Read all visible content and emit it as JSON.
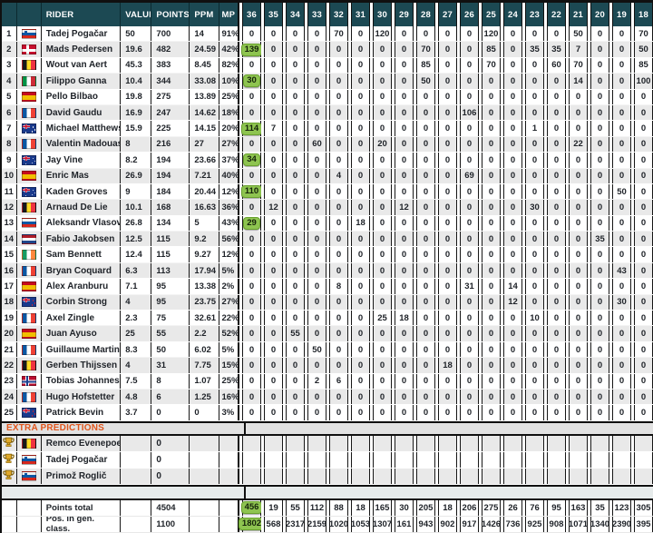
{
  "colors": {
    "header_bg": "#1c4953",
    "row_alt": "#e9e9e9",
    "badge_green": "#8ec450",
    "badge_border": "#69a12e",
    "accent_orange": "#e0551c",
    "extra_band_bg": "#e2e2e2",
    "gap_band_bg": "#e6ebeb"
  },
  "header": {
    "rider": "RIDER",
    "value": "VALUE",
    "points": "POINTS",
    "ppm": "PPM",
    "mp": "MP",
    "stages": [
      "36",
      "35",
      "34",
      "33",
      "32",
      "31",
      "30",
      "29",
      "28",
      "27",
      "26",
      "25",
      "24",
      "23",
      "22",
      "21",
      "20",
      "19",
      "18"
    ]
  },
  "riders": [
    {
      "rank": "1",
      "country": "si",
      "name": "Tadej Pogačar",
      "value": "50",
      "points": "700",
      "ppm": "14",
      "mp": "91%",
      "stages": [
        "0",
        "0",
        "0",
        "0",
        "70",
        "0",
        "120",
        "0",
        "0",
        "0",
        "0",
        "120",
        "0",
        "0",
        "0",
        "50",
        "0",
        "0",
        "70"
      ]
    },
    {
      "rank": "2",
      "country": "dk",
      "name": "Mads Pedersen",
      "value": "19.6",
      "points": "482",
      "ppm": "24.59",
      "mp": "42%",
      "stages": [
        "139",
        "0",
        "0",
        "0",
        "0",
        "0",
        "0",
        "0",
        "70",
        "0",
        "0",
        "85",
        "0",
        "35",
        "35",
        "7",
        "0",
        "0",
        "50"
      ]
    },
    {
      "rank": "3",
      "country": "be",
      "name": "Wout van Aert",
      "value": "45.3",
      "points": "383",
      "ppm": "8.45",
      "mp": "82%",
      "stages": [
        "0",
        "0",
        "0",
        "0",
        "0",
        "0",
        "0",
        "0",
        "85",
        "0",
        "0",
        "70",
        "0",
        "0",
        "60",
        "70",
        "0",
        "0",
        "85"
      ]
    },
    {
      "rank": "4",
      "country": "it",
      "name": "Filippo Ganna",
      "value": "10.4",
      "points": "344",
      "ppm": "33.08",
      "mp": "10%",
      "stages": [
        "30",
        "0",
        "0",
        "0",
        "0",
        "0",
        "0",
        "0",
        "50",
        "0",
        "0",
        "0",
        "0",
        "0",
        "0",
        "14",
        "0",
        "0",
        "100"
      ]
    },
    {
      "rank": "5",
      "country": "es",
      "name": "Pello Bilbao",
      "value": "19.8",
      "points": "275",
      "ppm": "13.89",
      "mp": "25%",
      "stages": [
        "0",
        "0",
        "0",
        "0",
        "0",
        "0",
        "0",
        "0",
        "0",
        "0",
        "0",
        "0",
        "0",
        "0",
        "0",
        "0",
        "0",
        "0",
        "0"
      ]
    },
    {
      "rank": "6",
      "country": "fr",
      "name": "David Gaudu",
      "value": "16.9",
      "points": "247",
      "ppm": "14.62",
      "mp": "18%",
      "stages": [
        "0",
        "0",
        "0",
        "0",
        "0",
        "0",
        "0",
        "0",
        "0",
        "0",
        "106",
        "0",
        "0",
        "0",
        "0",
        "0",
        "0",
        "0",
        "0"
      ]
    },
    {
      "rank": "7",
      "country": "au",
      "name": "Michael Matthews",
      "value": "15.9",
      "points": "225",
      "ppm": "14.15",
      "mp": "20%",
      "stages": [
        "114",
        "7",
        "0",
        "0",
        "0",
        "0",
        "0",
        "0",
        "0",
        "0",
        "0",
        "0",
        "0",
        "1",
        "0",
        "0",
        "0",
        "0",
        "0"
      ]
    },
    {
      "rank": "8",
      "country": "fr",
      "name": "Valentin Madouas",
      "value": "8",
      "points": "216",
      "ppm": "27",
      "mp": "27%",
      "stages": [
        "0",
        "0",
        "0",
        "60",
        "0",
        "0",
        "20",
        "0",
        "0",
        "0",
        "0",
        "0",
        "0",
        "0",
        "0",
        "22",
        "0",
        "0",
        "0"
      ]
    },
    {
      "rank": "9",
      "country": "au",
      "name": "Jay Vine",
      "value": "8.2",
      "points": "194",
      "ppm": "23.66",
      "mp": "37%",
      "stages": [
        "34",
        "0",
        "0",
        "0",
        "0",
        "0",
        "0",
        "0",
        "0",
        "0",
        "0",
        "0",
        "0",
        "0",
        "0",
        "0",
        "0",
        "0",
        "0"
      ]
    },
    {
      "rank": "10",
      "country": "es",
      "name": "Enric Mas",
      "value": "26.9",
      "points": "194",
      "ppm": "7.21",
      "mp": "40%",
      "stages": [
        "0",
        "0",
        "0",
        "0",
        "4",
        "0",
        "0",
        "0",
        "0",
        "0",
        "69",
        "0",
        "0",
        "0",
        "0",
        "0",
        "0",
        "0",
        "0"
      ]
    },
    {
      "rank": "11",
      "country": "au",
      "name": "Kaden Groves",
      "value": "9",
      "points": "184",
      "ppm": "20.44",
      "mp": "12%",
      "stages": [
        "110",
        "0",
        "0",
        "0",
        "0",
        "0",
        "0",
        "0",
        "0",
        "0",
        "0",
        "0",
        "0",
        "0",
        "0",
        "0",
        "0",
        "50",
        "0"
      ]
    },
    {
      "rank": "12",
      "country": "be",
      "name": "Arnaud De Lie",
      "value": "10.1",
      "points": "168",
      "ppm": "16.63",
      "mp": "36%",
      "stages": [
        "0",
        "12",
        "0",
        "0",
        "0",
        "0",
        "0",
        "12",
        "0",
        "0",
        "0",
        "0",
        "0",
        "30",
        "0",
        "0",
        "0",
        "0",
        "0"
      ]
    },
    {
      "rank": "13",
      "country": "ru",
      "name": "Aleksandr Vlasov",
      "value": "26.8",
      "points": "134",
      "ppm": "5",
      "mp": "43%",
      "stages": [
        "29",
        "0",
        "0",
        "0",
        "0",
        "18",
        "0",
        "0",
        "0",
        "0",
        "0",
        "0",
        "0",
        "0",
        "0",
        "0",
        "0",
        "0",
        "0"
      ]
    },
    {
      "rank": "14",
      "country": "nl",
      "name": "Fabio Jakobsen",
      "value": "12.5",
      "points": "115",
      "ppm": "9.2",
      "mp": "56%",
      "stages": [
        "0",
        "0",
        "0",
        "0",
        "0",
        "0",
        "0",
        "0",
        "0",
        "0",
        "0",
        "0",
        "0",
        "0",
        "0",
        "0",
        "35",
        "0",
        "0"
      ]
    },
    {
      "rank": "15",
      "country": "ie",
      "name": "Sam Bennett",
      "value": "12.4",
      "points": "115",
      "ppm": "9.27",
      "mp": "12%",
      "stages": [
        "0",
        "0",
        "0",
        "0",
        "0",
        "0",
        "0",
        "0",
        "0",
        "0",
        "0",
        "0",
        "0",
        "0",
        "0",
        "0",
        "0",
        "0",
        "0"
      ]
    },
    {
      "rank": "16",
      "country": "fr",
      "name": "Bryan Coquard",
      "value": "6.3",
      "points": "113",
      "ppm": "17.94",
      "mp": "5%",
      "stages": [
        "0",
        "0",
        "0",
        "0",
        "0",
        "0",
        "0",
        "0",
        "0",
        "0",
        "0",
        "0",
        "0",
        "0",
        "0",
        "0",
        "0",
        "43",
        "0"
      ]
    },
    {
      "rank": "17",
      "country": "es",
      "name": "Alex Aranburu",
      "value": "7.1",
      "points": "95",
      "ppm": "13.38",
      "mp": "2%",
      "stages": [
        "0",
        "0",
        "0",
        "0",
        "8",
        "0",
        "0",
        "0",
        "0",
        "0",
        "31",
        "0",
        "14",
        "0",
        "0",
        "0",
        "0",
        "0",
        "0"
      ]
    },
    {
      "rank": "18",
      "country": "nz",
      "name": "Corbin Strong",
      "value": "4",
      "points": "95",
      "ppm": "23.75",
      "mp": "27%",
      "stages": [
        "0",
        "0",
        "0",
        "0",
        "0",
        "0",
        "0",
        "0",
        "0",
        "0",
        "0",
        "0",
        "12",
        "0",
        "0",
        "0",
        "0",
        "30",
        "0"
      ]
    },
    {
      "rank": "19",
      "country": "fr",
      "name": "Axel Zingle",
      "value": "2.3",
      "points": "75",
      "ppm": "32.61",
      "mp": "22%",
      "stages": [
        "0",
        "0",
        "0",
        "0",
        "0",
        "0",
        "25",
        "18",
        "0",
        "0",
        "0",
        "0",
        "0",
        "10",
        "0",
        "0",
        "0",
        "0",
        "0"
      ]
    },
    {
      "rank": "20",
      "country": "es",
      "name": "Juan Ayuso",
      "value": "25",
      "points": "55",
      "ppm": "2.2",
      "mp": "52%",
      "stages": [
        "0",
        "0",
        "55",
        "0",
        "0",
        "0",
        "0",
        "0",
        "0",
        "0",
        "0",
        "0",
        "0",
        "0",
        "0",
        "0",
        "0",
        "0",
        "0"
      ]
    },
    {
      "rank": "21",
      "country": "fr",
      "name": "Guillaume Martin",
      "value": "8.3",
      "points": "50",
      "ppm": "6.02",
      "mp": "5%",
      "stages": [
        "0",
        "0",
        "0",
        "50",
        "0",
        "0",
        "0",
        "0",
        "0",
        "0",
        "0",
        "0",
        "0",
        "0",
        "0",
        "0",
        "0",
        "0",
        "0"
      ]
    },
    {
      "rank": "22",
      "country": "be",
      "name": "Gerben Thijssen",
      "value": "4",
      "points": "31",
      "ppm": "7.75",
      "mp": "15%",
      "stages": [
        "0",
        "0",
        "0",
        "0",
        "0",
        "0",
        "0",
        "0",
        "0",
        "18",
        "0",
        "0",
        "0",
        "0",
        "0",
        "0",
        "0",
        "0",
        "0"
      ]
    },
    {
      "rank": "23",
      "country": "no",
      "name": "Tobias Johannessen",
      "value": "7.5",
      "points": "8",
      "ppm": "1.07",
      "mp": "25%",
      "stages": [
        "0",
        "0",
        "0",
        "2",
        "6",
        "0",
        "0",
        "0",
        "0",
        "0",
        "0",
        "0",
        "0",
        "0",
        "0",
        "0",
        "0",
        "0",
        "0"
      ]
    },
    {
      "rank": "24",
      "country": "fr",
      "name": "Hugo Hofstetter",
      "value": "4.8",
      "points": "6",
      "ppm": "1.25",
      "mp": "16%",
      "stages": [
        "0",
        "0",
        "0",
        "0",
        "0",
        "0",
        "0",
        "0",
        "0",
        "0",
        "0",
        "0",
        "0",
        "0",
        "0",
        "0",
        "0",
        "0",
        "0"
      ]
    },
    {
      "rank": "25",
      "country": "nz",
      "name": "Patrick Bevin",
      "value": "3.7",
      "points": "0",
      "ppm": "0",
      "mp": "3%",
      "stages": [
        "0",
        "0",
        "0",
        "0",
        "0",
        "0",
        "0",
        "0",
        "0",
        "0",
        "0",
        "0",
        "0",
        "0",
        "0",
        "0",
        "0",
        "0",
        "0"
      ]
    }
  ],
  "extra_predictions": {
    "label": "EXTRA PREDICTIONS",
    "rows": [
      {
        "country": "be",
        "name": "Remco Evenepoel",
        "points": "0"
      },
      {
        "country": "si",
        "name": "Tadej Pogačar",
        "points": "0"
      },
      {
        "country": "si",
        "name": "Primož Roglič",
        "points": "0"
      }
    ]
  },
  "totals": [
    {
      "label": "Points total",
      "points": "4504",
      "stages": [
        "456",
        "19",
        "55",
        "112",
        "88",
        "18",
        "165",
        "30",
        "205",
        "18",
        "206",
        "275",
        "26",
        "76",
        "95",
        "163",
        "35",
        "123",
        "305"
      ]
    },
    {
      "label": "Pos. in gen. class.",
      "points": "1100",
      "stages": [
        "1802",
        "568",
        "2317",
        "2159",
        "1020",
        "1053",
        "1307",
        "161",
        "943",
        "902",
        "917",
        "1426",
        "736",
        "925",
        "908",
        "1071",
        "1340",
        "2390",
        "395"
      ]
    }
  ]
}
